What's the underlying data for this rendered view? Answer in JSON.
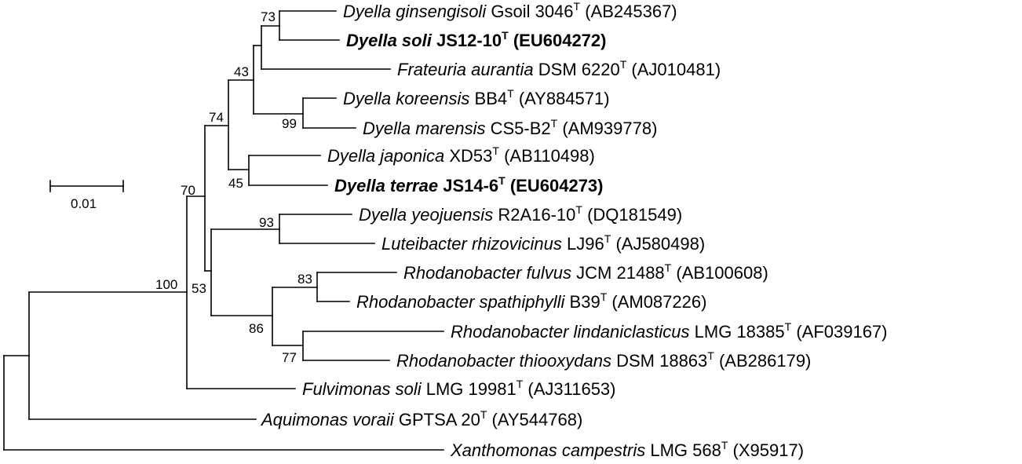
{
  "taxa": [
    {
      "id": "t1",
      "species": "Dyella ginsengisoli",
      "strain": "Gsoil 3046",
      "type_mark": "T",
      "accession": "(AB245367)",
      "bold": false
    },
    {
      "id": "t2",
      "species": "Dyella soli",
      "strain": "JS12-10",
      "type_mark": "T",
      "accession": "(EU604272)",
      "bold": true
    },
    {
      "id": "t3",
      "species": "Frateuria aurantia",
      "strain": "DSM 6220",
      "type_mark": "T",
      "accession": "(AJ010481)",
      "bold": false
    },
    {
      "id": "t4",
      "species": "Dyella koreensis",
      "strain": "BB4",
      "type_mark": "T",
      "accession": "(AY884571)",
      "bold": false
    },
    {
      "id": "t5",
      "species": "Dyella marensis",
      "strain": "CS5-B2",
      "type_mark": "T",
      "accession": "(AM939778)",
      "bold": false
    },
    {
      "id": "t6",
      "species": "Dyella japonica",
      "strain": "XD53",
      "type_mark": "T",
      "accession": "(AB110498)",
      "bold": false
    },
    {
      "id": "t7",
      "species": "Dyella terrae",
      "strain": "JS14-6",
      "type_mark": "T",
      "accession": "(EU604273)",
      "bold": true
    },
    {
      "id": "t8",
      "species": "Dyella yeojuensis",
      "strain": "R2A16-10",
      "type_mark": "T",
      "accession": "(DQ181549)",
      "bold": false
    },
    {
      "id": "t9",
      "species": "Luteibacter rhizovicinus",
      "strain": "LJ96",
      "type_mark": "T",
      "accession": "(AJ580498)",
      "bold": false
    },
    {
      "id": "t10",
      "species": "Rhodanobacter fulvus",
      "strain": "JCM 21488",
      "type_mark": "T",
      "accession": "(AB100608)",
      "bold": false
    },
    {
      "id": "t11",
      "species": "Rhodanobacter spathiphylli",
      "strain": "B39",
      "type_mark": "T",
      "accession": "(AM087226)",
      "bold": false
    },
    {
      "id": "t12",
      "species": "Rhodanobacter lindaniclasticus",
      "strain": "LMG 18385",
      "type_mark": "T",
      "accession": "(AF039167)",
      "bold": false
    },
    {
      "id": "t13",
      "species": "Rhodanobacter thiooxydans",
      "strain": "DSM 18863",
      "type_mark": "T",
      "accession": "(AB286179)",
      "bold": false
    },
    {
      "id": "t14",
      "species": "Fulvimonas soli",
      "strain": "LMG 19981",
      "type_mark": "T",
      "accession": "(AJ311653)",
      "bold": false
    },
    {
      "id": "t15",
      "species": "Aquimonas voraii",
      "strain": "GPTSA 20",
      "type_mark": "T",
      "accession": "(AY544768)",
      "bold": false
    },
    {
      "id": "t16",
      "species": "Xanthomonas campestris",
      "strain": "LMG 568",
      "type_mark": "T",
      "accession": "(X95917)",
      "bold": false
    }
  ],
  "bootstrap": {
    "b73": "73",
    "b43": "43",
    "b99": "99",
    "b74": "74",
    "b45": "45",
    "b70": "70",
    "b93": "93",
    "b100": "100",
    "b53": "53",
    "b83": "83",
    "b86": "86",
    "b77": "77"
  },
  "scale_bar": {
    "label": "0.01",
    "value": 0.01
  }
}
